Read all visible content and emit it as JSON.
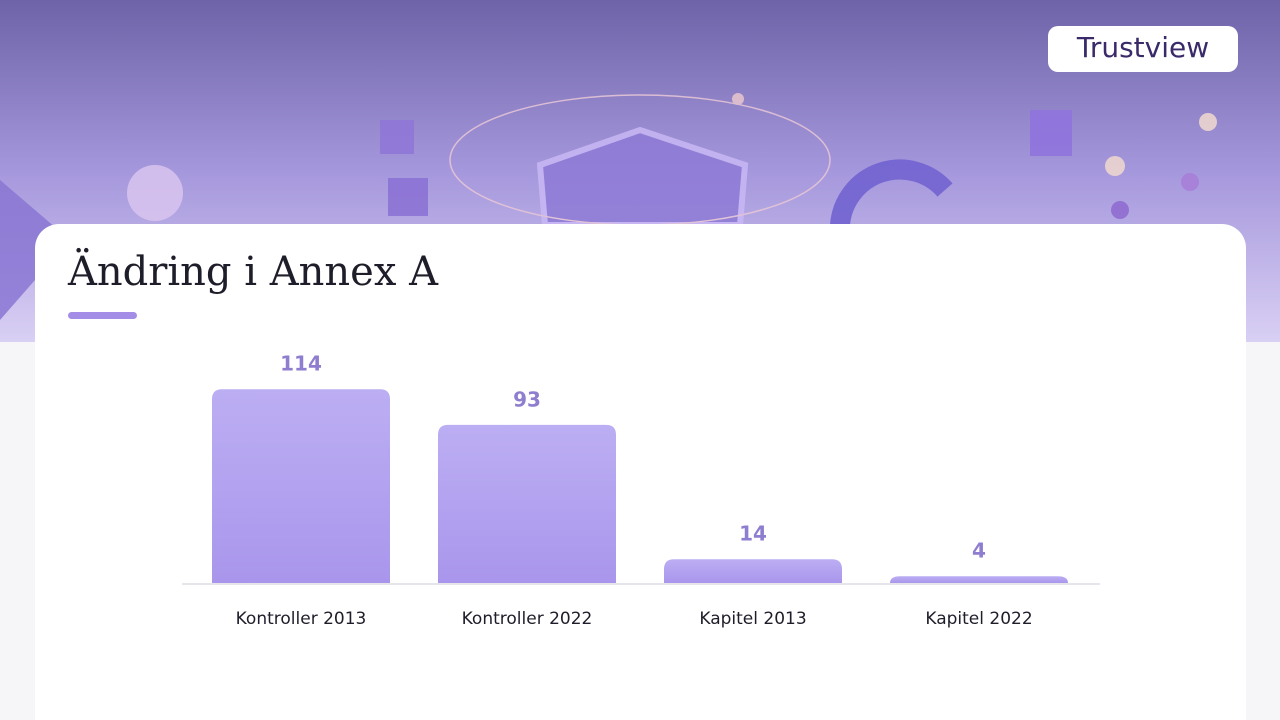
{
  "logo": "Trustview",
  "chart_data": {
    "type": "bar",
    "title": "Ändring i Annex A",
    "categories": [
      "Kontroller 2013",
      "Kontroller 2022",
      "Kapitel 2013",
      "Kapitel 2022"
    ],
    "values": [
      114,
      93,
      14,
      4
    ],
    "color": "#ae9cee"
  }
}
